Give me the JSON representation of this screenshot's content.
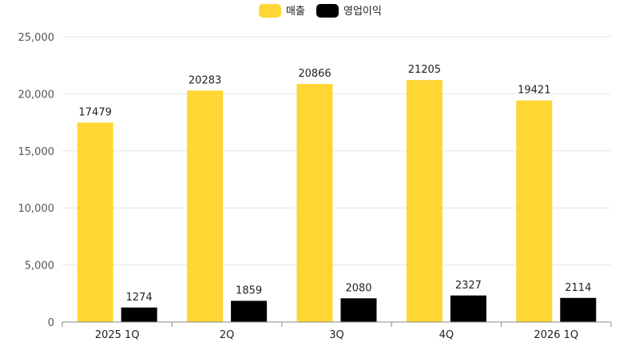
{
  "chart_data": {
    "type": "bar",
    "categories": [
      "2025 1Q",
      "2Q",
      "3Q",
      "4Q",
      "2026 1Q"
    ],
    "series": [
      {
        "name": "매출",
        "values": [
          17479,
          20283,
          20866,
          21205,
          19421
        ],
        "color": "#FFD633"
      },
      {
        "name": "영업이익",
        "values": [
          1274,
          1859,
          2080,
          2327,
          2114
        ],
        "color": "#000000"
      }
    ],
    "ylim": [
      0,
      25000
    ],
    "yticks": [
      "0",
      "5,000",
      "10,000",
      "15,000",
      "20,000",
      "25,000"
    ],
    "ytick_values": [
      0,
      5000,
      10000,
      15000,
      20000,
      25000
    ],
    "grid": true,
    "legend": "top-center",
    "title": "",
    "xlabel": "",
    "ylabel": ""
  }
}
